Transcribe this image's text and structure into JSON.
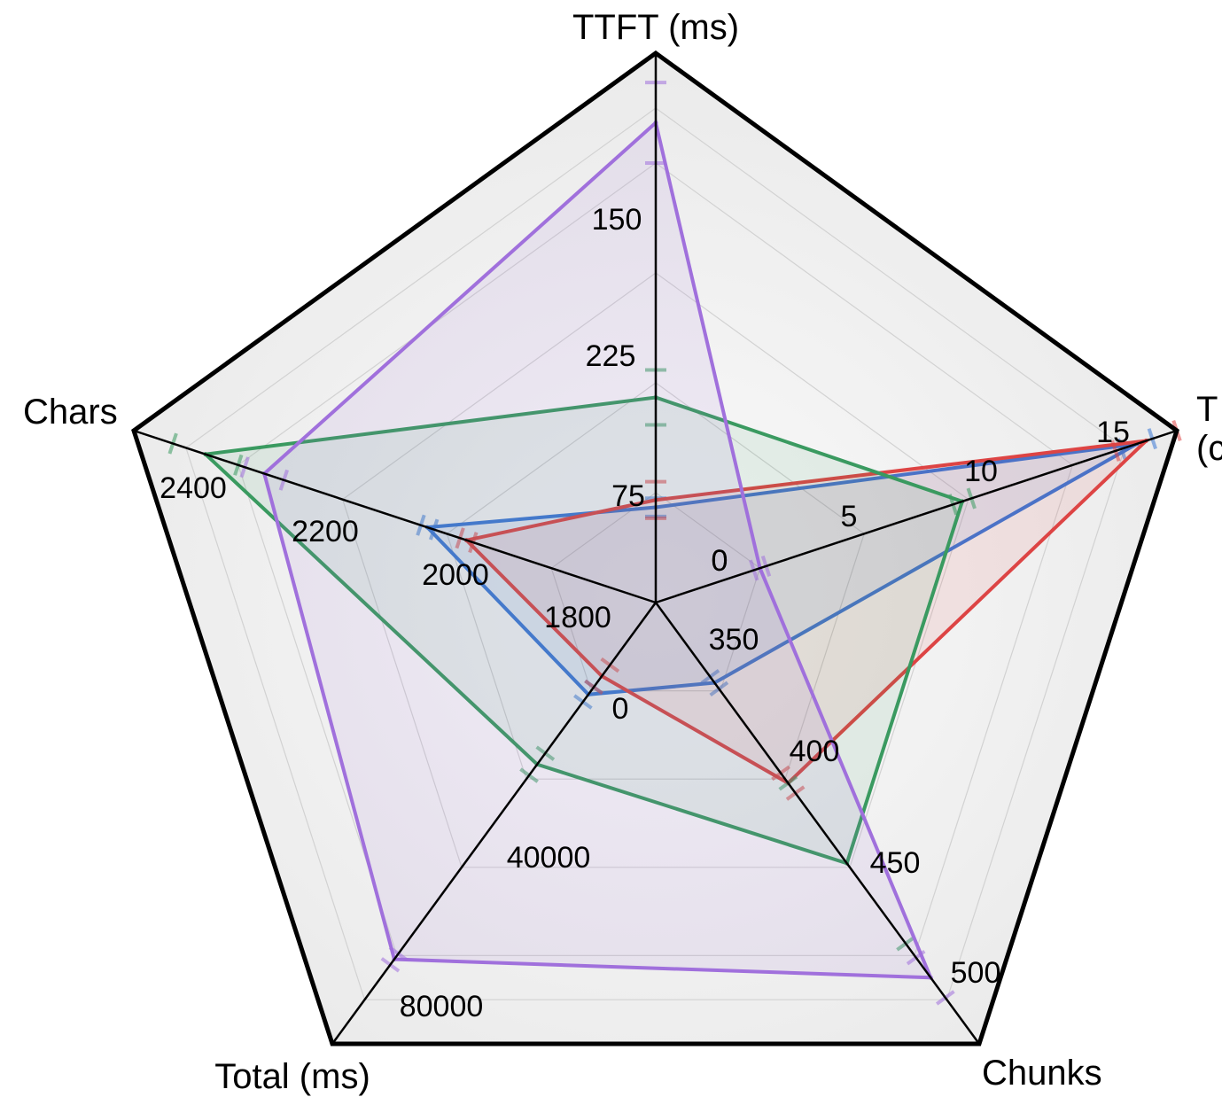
{
  "chart_data": {
    "type": "radar",
    "axes": [
      {
        "key": "ttft",
        "label_lines": [
          "TTFT (ms)"
        ],
        "min": 0,
        "max": 300,
        "ticks": [
          "0",
          "75",
          "150",
          "225"
        ]
      },
      {
        "key": "tps",
        "label_lines": [
          "T",
          "(c"
        ],
        "min": 0,
        "max": 17,
        "ticks": [
          "0",
          "5",
          "10",
          "15"
        ]
      },
      {
        "key": "chunks",
        "label_lines": [
          "Chunks"
        ],
        "min": 310,
        "max": 530,
        "ticks": [
          "350",
          "400",
          "450",
          "500"
        ]
      },
      {
        "key": "total",
        "label_lines": [
          "Total (ms)"
        ],
        "min": 0,
        "max": 120000,
        "ticks": [
          "0",
          "40000",
          "80000"
        ]
      },
      {
        "key": "chars",
        "label_lines": [
          "Chars"
        ],
        "min": 1700,
        "max": 2500,
        "ticks": [
          "1800",
          "2000",
          "2200",
          "2400"
        ]
      }
    ],
    "series": [
      {
        "color": "#3a78d6",
        "values": [
          52,
          15.7,
          350,
          25000,
          2050
        ],
        "error": [
          5,
          0.5,
          3,
          2000,
          10
        ]
      },
      {
        "color": "#dd4444",
        "values": [
          56,
          16.0,
          400,
          20000,
          1990
        ],
        "error": [
          10,
          1.0,
          5,
          3000,
          10
        ]
      },
      {
        "color": "#3a9a60",
        "values": [
          112,
          10.0,
          440,
          44000,
          2390
        ],
        "error": [
          15,
          0.3,
          40,
          3000,
          50
        ]
      },
      {
        "color": "#a070dc",
        "values": [
          262,
          3.4,
          497,
          97000,
          2300
        ],
        "error": [
          22,
          0.2,
          10,
          1500,
          30
        ]
      }
    ],
    "grid": true,
    "legend": "none"
  }
}
